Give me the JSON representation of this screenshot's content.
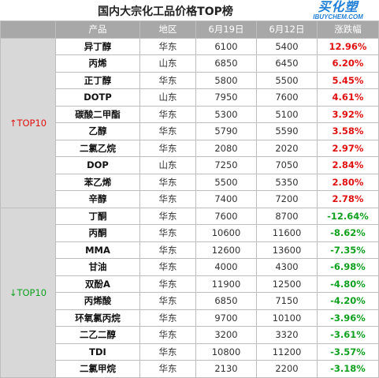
{
  "title": "国内大宗化工品价格TOP榜",
  "logo": {
    "main": "买化塑",
    "sub": "IBUYCHEM.COM"
  },
  "colors": {
    "header_bg": "#a8a8a8",
    "group_bg": "#d8d8d8",
    "up": "#e01010",
    "down": "#10a020"
  },
  "columns": [
    "产品",
    "地区",
    "6月19日",
    "6月12日",
    "涨跌幅"
  ],
  "groups": [
    {
      "label": "TOP10",
      "arrow": "↑",
      "direction": "up",
      "rows": [
        {
          "product": "异丁醇",
          "region": "华东",
          "jun19": "6100",
          "jun12": "5400",
          "change": "12.96%"
        },
        {
          "product": "丙烯",
          "region": "山东",
          "jun19": "6850",
          "jun12": "6450",
          "change": "6.20%"
        },
        {
          "product": "正丁醇",
          "region": "华东",
          "jun19": "5800",
          "jun12": "5500",
          "change": "5.45%"
        },
        {
          "product": "DOTP",
          "region": "山东",
          "jun19": "7950",
          "jun12": "7600",
          "change": "4.61%"
        },
        {
          "product": "碳酸二甲酯",
          "region": "华东",
          "jun19": "5300",
          "jun12": "5100",
          "change": "3.92%"
        },
        {
          "product": "乙醇",
          "region": "华东",
          "jun19": "5790",
          "jun12": "5590",
          "change": "3.58%"
        },
        {
          "product": "二氯乙烷",
          "region": "华东",
          "jun19": "2080",
          "jun12": "2020",
          "change": "2.97%"
        },
        {
          "product": "DOP",
          "region": "山东",
          "jun19": "7250",
          "jun12": "7050",
          "change": "2.84%"
        },
        {
          "product": "苯乙烯",
          "region": "华东",
          "jun19": "5500",
          "jun12": "5350",
          "change": "2.80%"
        },
        {
          "product": "辛醇",
          "region": "华东",
          "jun19": "7400",
          "jun12": "7200",
          "change": "2.78%"
        }
      ]
    },
    {
      "label": "TOP10",
      "arrow": "↓",
      "direction": "down",
      "rows": [
        {
          "product": "丁酮",
          "region": "华东",
          "jun19": "7600",
          "jun12": "8700",
          "change": "-12.64%"
        },
        {
          "product": "丙酮",
          "region": "华东",
          "jun19": "10600",
          "jun12": "11600",
          "change": "-8.62%"
        },
        {
          "product": "MMA",
          "region": "华东",
          "jun19": "12600",
          "jun12": "13600",
          "change": "-7.35%"
        },
        {
          "product": "甘油",
          "region": "华东",
          "jun19": "4000",
          "jun12": "4300",
          "change": "-6.98%"
        },
        {
          "product": "双酚A",
          "region": "华东",
          "jun19": "11900",
          "jun12": "12500",
          "change": "-4.80%"
        },
        {
          "product": "丙烯酸",
          "region": "华东",
          "jun19": "6850",
          "jun12": "7150",
          "change": "-4.20%"
        },
        {
          "product": "环氧氯丙烷",
          "region": "华东",
          "jun19": "9700",
          "jun12": "10100",
          "change": "-3.96%"
        },
        {
          "product": "二乙二醇",
          "region": "华东",
          "jun19": "3200",
          "jun12": "3320",
          "change": "-3.61%"
        },
        {
          "product": "TDI",
          "region": "华东",
          "jun19": "10800",
          "jun12": "11200",
          "change": "-3.57%"
        },
        {
          "product": "二氯甲烷",
          "region": "华东",
          "jun19": "2130",
          "jun12": "2200",
          "change": "-3.18%"
        }
      ]
    }
  ]
}
